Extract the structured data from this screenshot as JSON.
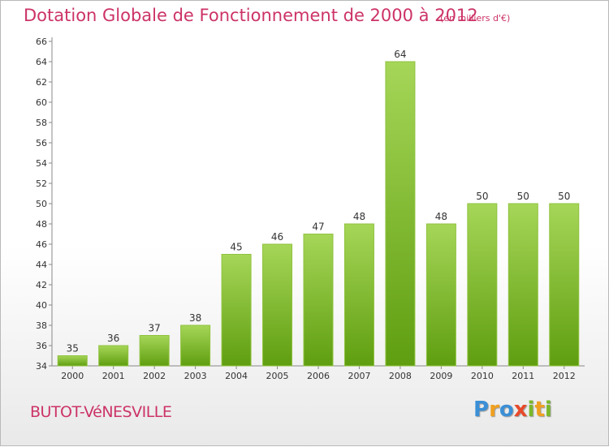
{
  "header": {
    "title": "Dotation Globale de Fonctionnement de 2000 à 2012",
    "subtitle": "(en milliers d'€)"
  },
  "footer": {
    "commune": "BUTOT-VéNESVILLE",
    "logo_letters": [
      "P",
      "r",
      "o",
      "x",
      "i",
      "t",
      "i"
    ],
    "logo_colors": [
      "#3b8fd6",
      "#f0a020",
      "#3b8fd6",
      "#e84a2a",
      "#7ab82a",
      "#f0a020",
      "#7ab82a"
    ]
  },
  "colors": {
    "bar_light": "#a6d658",
    "bar_dark": "#5f9e10",
    "text": "#333333",
    "accent": "#cc3366"
  },
  "chart_data": {
    "type": "bar",
    "categories": [
      "2000",
      "2001",
      "2002",
      "2003",
      "2004",
      "2005",
      "2006",
      "2007",
      "2008",
      "2009",
      "2010",
      "2011",
      "2012"
    ],
    "values": [
      35,
      36,
      37,
      38,
      45,
      46,
      47,
      48,
      64,
      48,
      50,
      50,
      50
    ],
    "ylim": [
      34,
      66
    ],
    "yticks": [
      34,
      36,
      38,
      40,
      42,
      44,
      46,
      48,
      50,
      52,
      54,
      56,
      58,
      60,
      62,
      64,
      66
    ],
    "grid": false,
    "data_labels": true
  }
}
